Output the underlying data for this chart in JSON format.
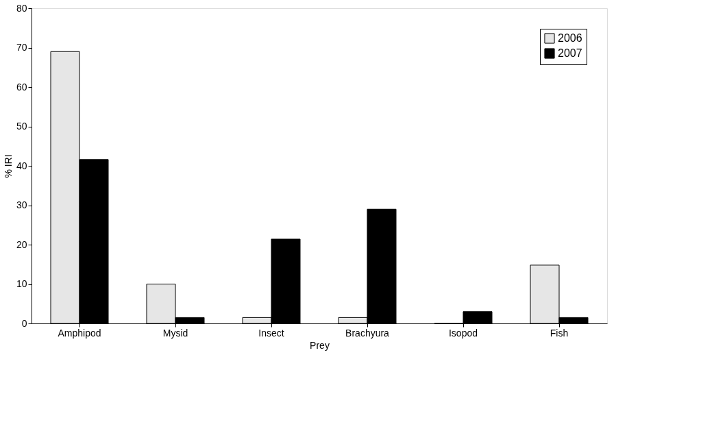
{
  "chart_data": {
    "type": "bar",
    "xlabel": "Prey",
    "ylabel": "% IRI",
    "categories": [
      "Amphipod",
      "Mysid",
      "Insect",
      "Brachyura",
      "Isopod",
      "Fish"
    ],
    "series": [
      {
        "name": "2006",
        "color": "#e6e6e6",
        "values": [
          69,
          10,
          1.5,
          1.5,
          0,
          14.8
        ]
      },
      {
        "name": "2007",
        "color": "#000000",
        "values": [
          41.6,
          1.5,
          21.4,
          29,
          3,
          1.5
        ]
      }
    ],
    "ylim": [
      0,
      80
    ],
    "yticks": [
      0,
      10,
      20,
      30,
      40,
      50,
      60,
      70,
      80
    ],
    "grid": false,
    "legend": "top right"
  }
}
